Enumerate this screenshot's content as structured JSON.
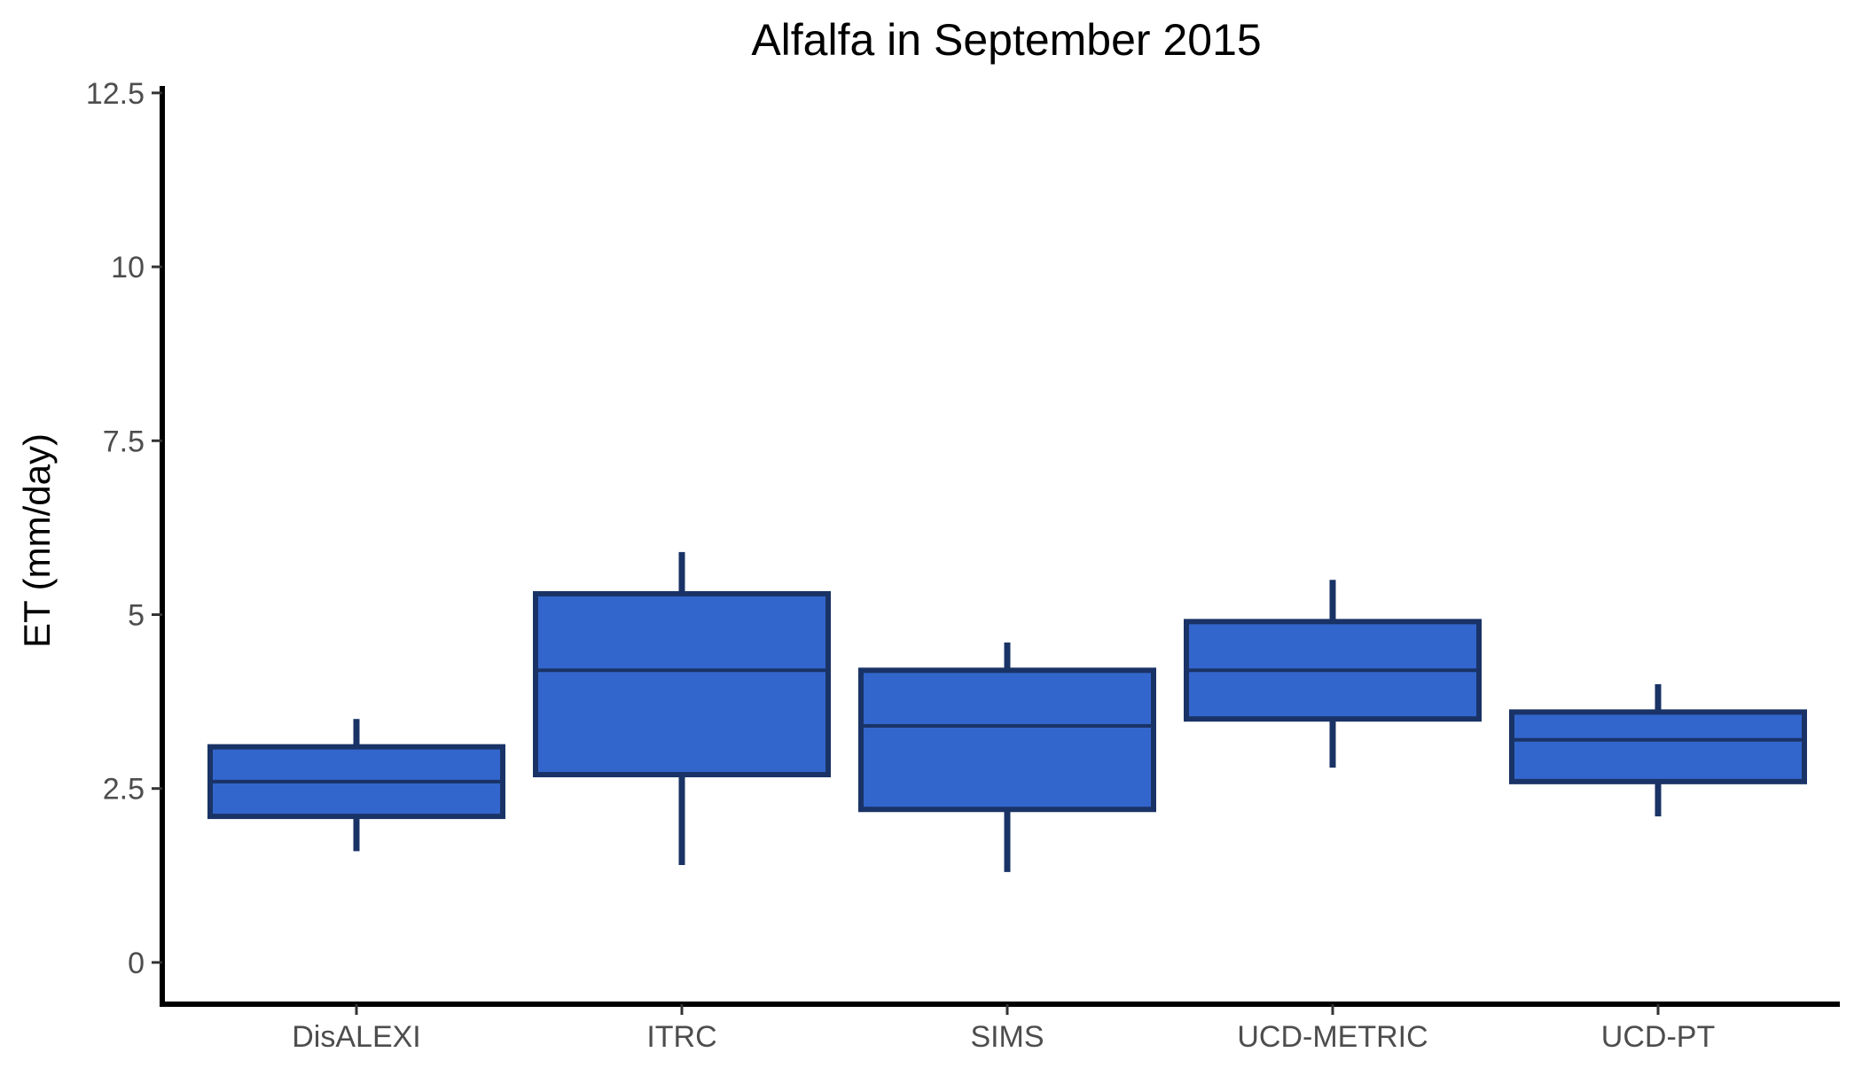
{
  "chart_data": {
    "type": "boxplot",
    "title": "Alfalfa in September 2015",
    "xlabel": "",
    "ylabel": "ET (mm/day)",
    "ylim": [
      -0.6,
      12.6
    ],
    "y_ticks": [
      0,
      2.5,
      5,
      7.5,
      10,
      12.5
    ],
    "y_tick_labels": [
      "0",
      "2.5",
      "5",
      "7.5",
      "10",
      "12.5"
    ],
    "categories": [
      "DisALEXI",
      "ITRC",
      "SIMS",
      "UCD-METRIC",
      "UCD-PT"
    ],
    "boxes": [
      {
        "category": "DisALEXI",
        "whisker_low": 1.6,
        "q1": 2.1,
        "median": 2.6,
        "q3": 3.1,
        "whisker_high": 3.5
      },
      {
        "category": "ITRC",
        "whisker_low": 1.4,
        "q1": 2.7,
        "median": 4.2,
        "q3": 5.3,
        "whisker_high": 5.9
      },
      {
        "category": "SIMS",
        "whisker_low": 1.3,
        "q1": 2.2,
        "median": 3.4,
        "q3": 4.2,
        "whisker_high": 4.6
      },
      {
        "category": "UCD-METRIC",
        "whisker_low": 2.8,
        "q1": 3.5,
        "median": 4.2,
        "q3": 4.9,
        "whisker_high": 5.5
      },
      {
        "category": "UCD-PT",
        "whisker_low": 2.1,
        "q1": 2.6,
        "median": 3.2,
        "q3": 3.6,
        "whisker_high": 4.0
      }
    ],
    "grid": false,
    "legend": "none",
    "colors": {
      "box_fill": "#3366cc",
      "box_outline": "#1a3366",
      "axis": "#000000"
    }
  }
}
